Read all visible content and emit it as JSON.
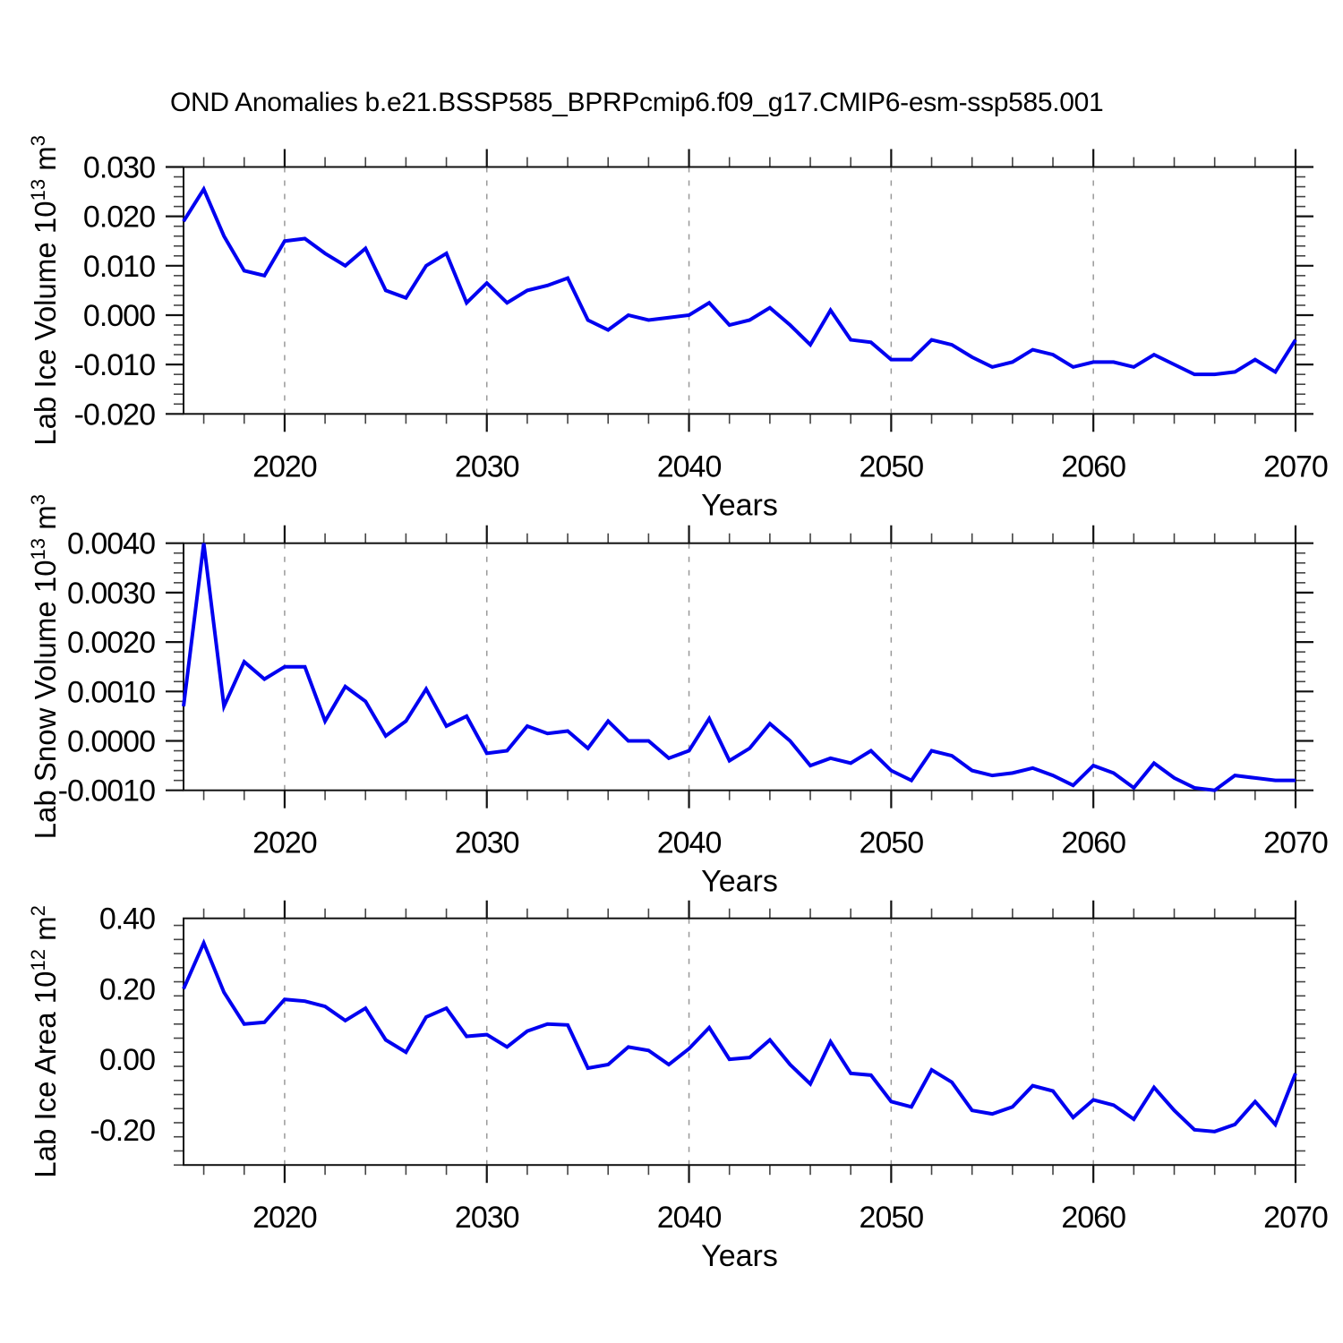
{
  "title": "OND Anomalies b.e21.BSSP585_BPRPcmip6.f09_g17.CMIP6-esm-ssp585.001",
  "colors": {
    "line": "#0000f0",
    "axis": "#111111",
    "grid": "#999999",
    "minor_tick": "#444444"
  },
  "chart_data": {
    "type": "line",
    "x_axis_label": "Years",
    "years": [
      2015,
      2016,
      2017,
      2018,
      2019,
      2020,
      2021,
      2022,
      2023,
      2024,
      2025,
      2026,
      2027,
      2028,
      2029,
      2030,
      2031,
      2032,
      2033,
      2034,
      2035,
      2036,
      2037,
      2038,
      2039,
      2040,
      2041,
      2042,
      2043,
      2044,
      2045,
      2046,
      2047,
      2048,
      2049,
      2050,
      2051,
      2052,
      2053,
      2054,
      2055,
      2056,
      2057,
      2058,
      2059,
      2060,
      2061,
      2062,
      2063,
      2064,
      2065,
      2066,
      2067,
      2068,
      2069,
      2070
    ],
    "xlim": [
      2015,
      2070
    ],
    "xticks": [
      2020,
      2030,
      2040,
      2050,
      2060,
      2070
    ],
    "xtick_labels": [
      "2020",
      "2030",
      "2040",
      "2050",
      "2060",
      "2070"
    ],
    "x_minor_step": 2,
    "grid": "vertical-dashed-at-major-xticks",
    "legend": "none",
    "panels": [
      {
        "name": "lab-ice-volume",
        "ylabel_text": "Lab Ice Volume 10^13 m^3",
        "ylabel_segments": [
          {
            "t": "Lab Ice Volume 10"
          },
          {
            "t": "13",
            "sup": true
          },
          {
            "t": " m"
          },
          {
            "t": "3",
            "sup": true
          }
        ],
        "ylim": [
          -0.02,
          0.03
        ],
        "yticks": [
          0.03,
          0.02,
          0.01,
          0.0,
          -0.01,
          -0.02
        ],
        "ytick_labels": [
          "0.030",
          "0.020",
          "0.010",
          "0.000",
          "-0.010",
          "-0.020"
        ],
        "y_minor_step": 0.002,
        "values": [
          0.019,
          0.0255,
          0.016,
          0.009,
          0.008,
          0.015,
          0.0155,
          0.0125,
          0.01,
          0.0135,
          0.005,
          0.0035,
          0.01,
          0.0125,
          0.0025,
          0.0065,
          0.0025,
          0.005,
          0.006,
          0.0075,
          -0.001,
          -0.003,
          0.0,
          -0.001,
          -0.0005,
          0.0,
          0.0025,
          -0.002,
          -0.001,
          0.0015,
          -0.002,
          -0.006,
          0.001,
          -0.005,
          -0.0055,
          -0.009,
          -0.009,
          -0.005,
          -0.006,
          -0.0085,
          -0.0105,
          -0.0095,
          -0.007,
          -0.008,
          -0.0105,
          -0.0095,
          -0.0095,
          -0.0105,
          -0.008,
          -0.01,
          -0.012,
          -0.012,
          -0.0115,
          -0.009,
          -0.0115,
          -0.005
        ]
      },
      {
        "name": "lab-snow-volume",
        "ylabel_text": "Lab Snow Volume 10^13 m^3",
        "ylabel_segments": [
          {
            "t": "Lab Snow Volume 10"
          },
          {
            "t": "13",
            "sup": true
          },
          {
            "t": " m"
          },
          {
            "t": "3",
            "sup": true
          }
        ],
        "ylim": [
          -0.001,
          0.004
        ],
        "yticks": [
          0.004,
          0.003,
          0.002,
          0.001,
          0.0,
          -0.001
        ],
        "ytick_labels": [
          "0.0040",
          "0.0030",
          "0.0020",
          "0.0010",
          "0.0000",
          "-0.0010"
        ],
        "y_minor_step": 0.0002,
        "values": [
          0.0007,
          0.004,
          0.0007,
          0.0016,
          0.00125,
          0.0015,
          0.0015,
          0.0004,
          0.0011,
          0.0008,
          0.0001,
          0.0004,
          0.00105,
          0.0003,
          0.0005,
          -0.00025,
          -0.0002,
          0.0003,
          0.00015,
          0.0002,
          -0.00015,
          0.0004,
          0.0,
          0.0,
          -0.00035,
          -0.0002,
          0.00045,
          -0.0004,
          -0.00015,
          0.00035,
          0.0,
          -0.0005,
          -0.00035,
          -0.00045,
          -0.0002,
          -0.0006,
          -0.0008,
          -0.0002,
          -0.0003,
          -0.0006,
          -0.0007,
          -0.00065,
          -0.00055,
          -0.0007,
          -0.0009,
          -0.0005,
          -0.00065,
          -0.00095,
          -0.00045,
          -0.00075,
          -0.00095,
          -0.001,
          -0.0007,
          -0.00075,
          -0.0008,
          -0.0008
        ]
      },
      {
        "name": "lab-ice-area",
        "ylabel_text": "Lab Ice Area 10^12 m^2",
        "ylabel_segments": [
          {
            "t": "Lab Ice Area 10"
          },
          {
            "t": "12",
            "sup": true
          },
          {
            "t": " m"
          },
          {
            "t": "2",
            "sup": true
          }
        ],
        "ylim": [
          -0.3,
          0.4
        ],
        "yticks": [
          0.4,
          0.2,
          0.0,
          -0.2
        ],
        "ytick_labels": [
          "0.40",
          "0.20",
          "0.00",
          "-0.20"
        ],
        "y_minor_step": 0.04,
        "values": [
          0.2,
          0.33,
          0.19,
          0.1,
          0.105,
          0.17,
          0.165,
          0.15,
          0.11,
          0.145,
          0.055,
          0.02,
          0.12,
          0.145,
          0.065,
          0.07,
          0.035,
          0.08,
          0.1,
          0.0975,
          -0.025,
          -0.015,
          0.035,
          0.025,
          -0.015,
          0.03,
          0.09,
          0.0,
          0.005,
          0.055,
          -0.015,
          -0.07,
          0.05,
          -0.04,
          -0.045,
          -0.12,
          -0.135,
          -0.03,
          -0.065,
          -0.145,
          -0.155,
          -0.135,
          -0.075,
          -0.09,
          -0.165,
          -0.115,
          -0.13,
          -0.17,
          -0.08,
          -0.145,
          -0.2,
          -0.205,
          -0.185,
          -0.12,
          -0.185,
          -0.04
        ]
      }
    ]
  }
}
